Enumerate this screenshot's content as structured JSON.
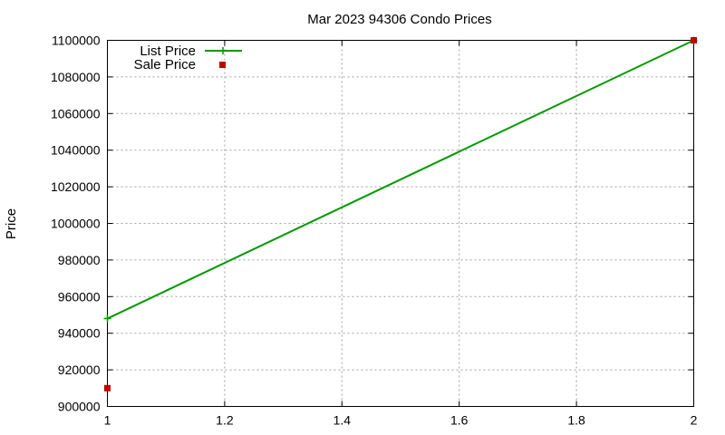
{
  "chart_data": {
    "type": "line",
    "title": "Mar 2023 94306 Condo Prices",
    "xlabel": "",
    "ylabel": "Price",
    "xlim": [
      1,
      2
    ],
    "ylim": [
      900000,
      1100000
    ],
    "x_ticks": [
      "1",
      "1.2",
      "1.4",
      "1.6",
      "1.8",
      "2"
    ],
    "y_ticks": [
      "900000",
      "920000",
      "940000",
      "960000",
      "980000",
      "1000000",
      "1020000",
      "1040000",
      "1060000",
      "1080000",
      "1100000"
    ],
    "grid": true,
    "legend_position": "top-left",
    "series": [
      {
        "name": "List Price",
        "style": "line-plus",
        "color": "#009900",
        "points": [
          [
            1,
            948000
          ],
          [
            2,
            1100000
          ]
        ]
      },
      {
        "name": "Sale Price",
        "style": "square-points",
        "color": "#c00000",
        "points": [
          [
            1,
            910000
          ],
          [
            2,
            1100000
          ]
        ]
      }
    ]
  }
}
